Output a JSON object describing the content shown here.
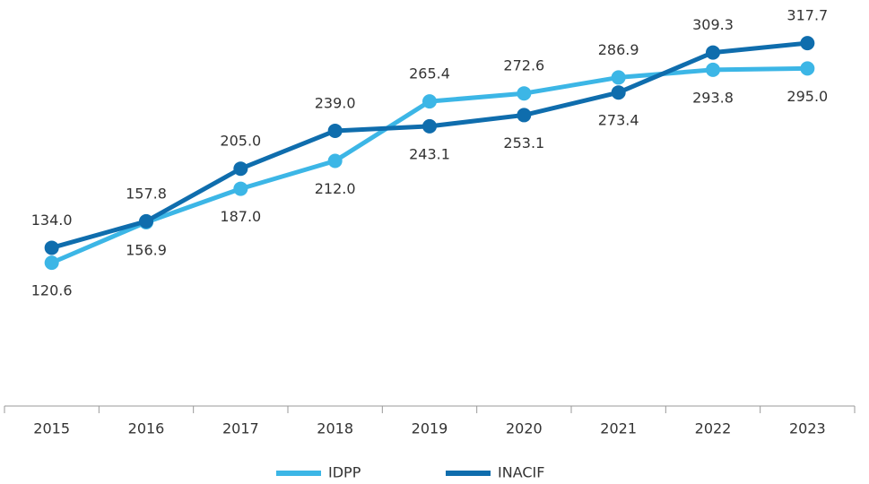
{
  "chart_data": {
    "type": "line",
    "categories": [
      "2015",
      "2016",
      "2017",
      "2018",
      "2019",
      "2020",
      "2021",
      "2022",
      "2023"
    ],
    "series": [
      {
        "name": "IDPP",
        "color": "#3cb6e6",
        "values": [
          120.6,
          156.9,
          187.0,
          212.0,
          265.4,
          272.6,
          286.9,
          293.8,
          295.0
        ],
        "value_labels": [
          "120.6",
          "156.9",
          "187.0",
          "212.0",
          "265.4",
          "272.6",
          "286.9",
          "293.8",
          "295.0"
        ]
      },
      {
        "name": "INACIF",
        "color": "#0f6dad",
        "values": [
          134.0,
          157.8,
          205.0,
          239.0,
          243.1,
          253.1,
          273.4,
          309.3,
          317.7
        ],
        "value_labels": [
          "134.0",
          "157.8",
          "205.0",
          "239.0",
          "243.1",
          "253.1",
          "273.4",
          "309.3",
          "317.7"
        ]
      }
    ],
    "ylim": [
      0,
      350
    ],
    "legend": "bottom"
  }
}
